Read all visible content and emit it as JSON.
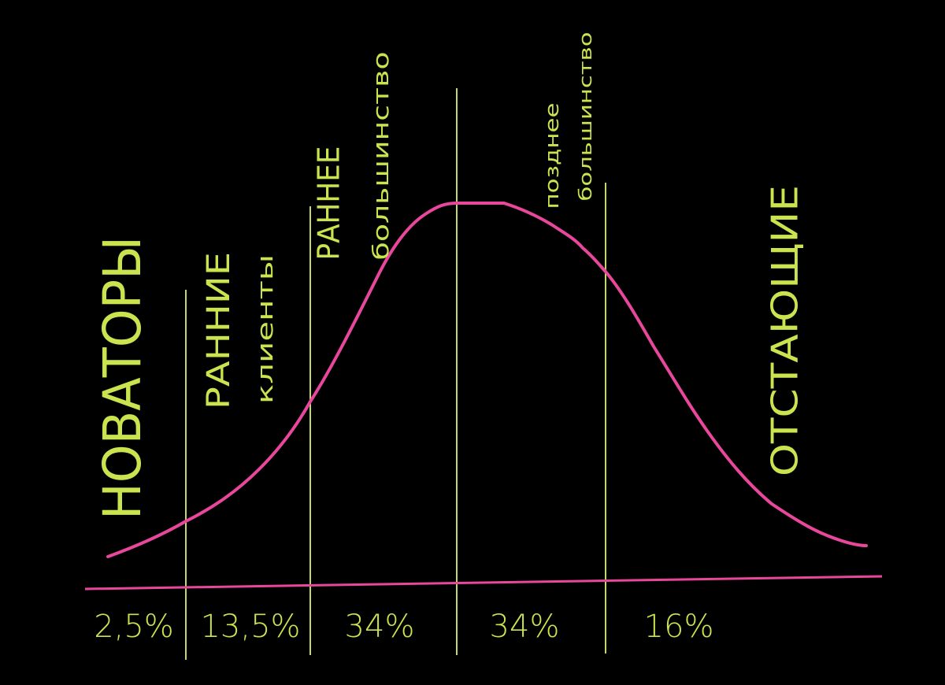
{
  "segments": [
    {
      "label_lines": [
        "НОВАТОРЫ"
      ],
      "share": "2,5%"
    },
    {
      "label_lines": [
        "РАННИЕ",
        "клиенты"
      ],
      "share": "13,5%"
    },
    {
      "label_lines": [
        "РАННЕЕ",
        "большинство"
      ],
      "share": "34%"
    },
    {
      "label_lines": [
        "позднее",
        "большинство"
      ],
      "share": "34%"
    },
    {
      "label_lines": [
        "ОТСТАЮЩИЕ"
      ],
      "share": "16%"
    }
  ]
}
